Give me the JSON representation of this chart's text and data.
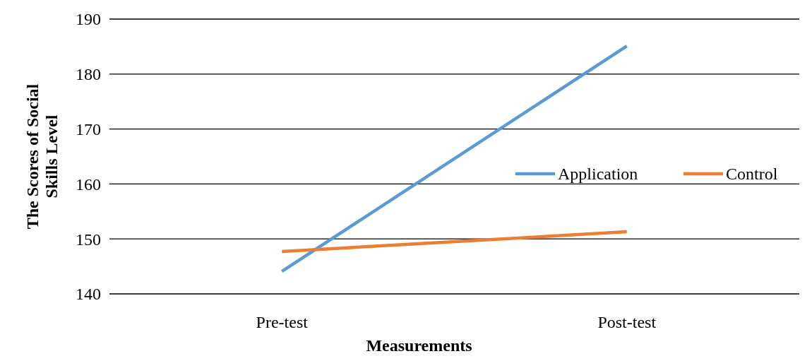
{
  "chart_data": {
    "type": "line",
    "xlabel": "Measurements",
    "ylabel": "The Scores of Social Skills Level",
    "categories": [
      "Pre-test",
      "Post-test"
    ],
    "series": [
      {
        "name": "Application",
        "color": "#5b9bd5",
        "values": [
          144.1,
          185.1
        ]
      },
      {
        "name": "Control",
        "color": "#ed7d31",
        "values": [
          147.7,
          151.3
        ]
      }
    ],
    "ylim": [
      140,
      190
    ],
    "yticks": [
      140,
      150,
      160,
      170,
      180,
      190
    ],
    "grid": "y",
    "legend": "right",
    "marker": "none",
    "line_style": "solid"
  }
}
